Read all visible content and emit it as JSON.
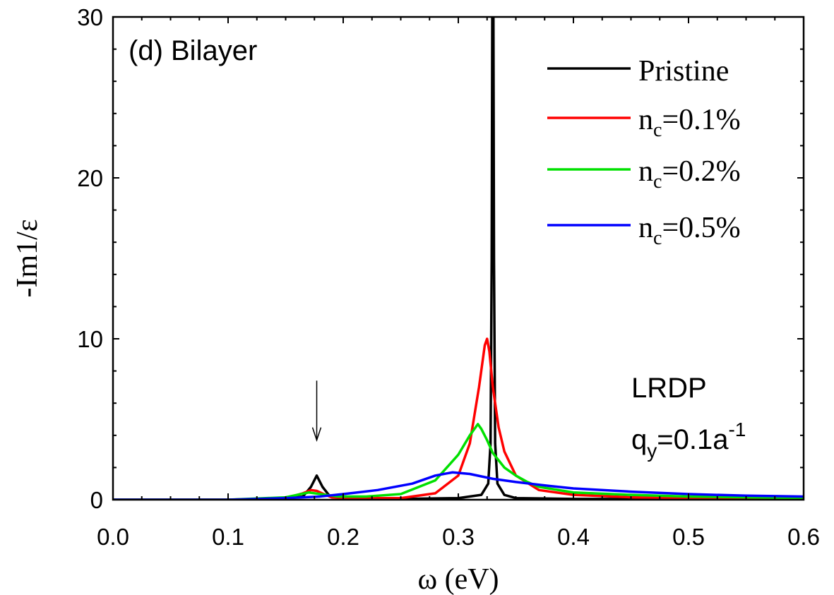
{
  "chart_data": {
    "type": "line",
    "panel_label": "(d) Bilayer",
    "xlabel": "ω (eV)",
    "ylabel": "-Im1/ε",
    "xlim": [
      0.0,
      0.6
    ],
    "ylim": [
      0,
      30
    ],
    "x_ticks": [
      "0.0",
      "0.1",
      "0.2",
      "0.3",
      "0.4",
      "0.5",
      "0.6"
    ],
    "y_ticks": [
      "0",
      "10",
      "20",
      "30"
    ],
    "annotation": {
      "line1": "LRDP",
      "line2_main": "q",
      "line2_sub": "y",
      "line2_mid": "=0.1a",
      "line2_sup": "-1"
    },
    "arrow_at": {
      "x": 0.177,
      "y_top": 7.4,
      "y_bottom": 3.7
    },
    "series": [
      {
        "name": "Pristine",
        "legend_main": "Pristine",
        "color": "#000000",
        "x": [
          0.0,
          0.1,
          0.15,
          0.165,
          0.172,
          0.177,
          0.182,
          0.188,
          0.2,
          0.25,
          0.3,
          0.32,
          0.326,
          0.328,
          0.329,
          0.3295,
          0.3305,
          0.331,
          0.332,
          0.334,
          0.34,
          0.35,
          0.4,
          0.6
        ],
        "values": [
          0,
          0,
          0.05,
          0.2,
          0.8,
          1.5,
          0.8,
          0.25,
          0.05,
          0.05,
          0.1,
          0.3,
          1.0,
          3.5,
          15.0,
          30.0,
          30.0,
          15.0,
          3.5,
          1.0,
          0.3,
          0.1,
          0.05,
          0.05
        ]
      },
      {
        "name": "n_c=0.1%",
        "legend_main": "n",
        "legend_sub": "c",
        "legend_rest": "=0.1%",
        "color": "#ff0000",
        "x": [
          0.0,
          0.1,
          0.15,
          0.165,
          0.172,
          0.177,
          0.183,
          0.19,
          0.2,
          0.25,
          0.28,
          0.3,
          0.31,
          0.318,
          0.323,
          0.325,
          0.327,
          0.33,
          0.335,
          0.34,
          0.35,
          0.37,
          0.4,
          0.45,
          0.5,
          0.6
        ],
        "values": [
          0,
          0,
          0.1,
          0.4,
          0.6,
          0.55,
          0.35,
          0.15,
          0.1,
          0.1,
          0.4,
          1.5,
          3.5,
          7.0,
          9.6,
          10.0,
          9.2,
          7.0,
          4.5,
          3.0,
          1.5,
          0.6,
          0.3,
          0.15,
          0.1,
          0.1
        ]
      },
      {
        "name": "n_c=0.2%",
        "legend_main": "n",
        "legend_sub": "c",
        "legend_rest": "=0.2%",
        "color": "#00e000",
        "x": [
          0.0,
          0.1,
          0.15,
          0.17,
          0.18,
          0.195,
          0.22,
          0.25,
          0.28,
          0.3,
          0.31,
          0.317,
          0.32,
          0.325,
          0.33,
          0.34,
          0.35,
          0.36,
          0.37,
          0.4,
          0.45,
          0.5,
          0.6
        ],
        "values": [
          0,
          0,
          0.15,
          0.45,
          0.35,
          0.2,
          0.2,
          0.35,
          1.2,
          2.8,
          4.0,
          4.7,
          4.4,
          3.7,
          2.9,
          2.0,
          1.5,
          1.1,
          0.8,
          0.45,
          0.3,
          0.2,
          0.1
        ]
      },
      {
        "name": "n_c=0.5%",
        "legend_main": "n",
        "legend_sub": "c",
        "legend_rest": "=0.5%",
        "color": "#0000ff",
        "x": [
          0.0,
          0.1,
          0.15,
          0.18,
          0.2,
          0.23,
          0.26,
          0.28,
          0.295,
          0.31,
          0.33,
          0.35,
          0.38,
          0.4,
          0.45,
          0.5,
          0.55,
          0.6
        ],
        "values": [
          0,
          0,
          0.1,
          0.2,
          0.35,
          0.6,
          1.0,
          1.5,
          1.7,
          1.6,
          1.3,
          1.1,
          0.85,
          0.7,
          0.5,
          0.35,
          0.25,
          0.2
        ]
      }
    ]
  }
}
